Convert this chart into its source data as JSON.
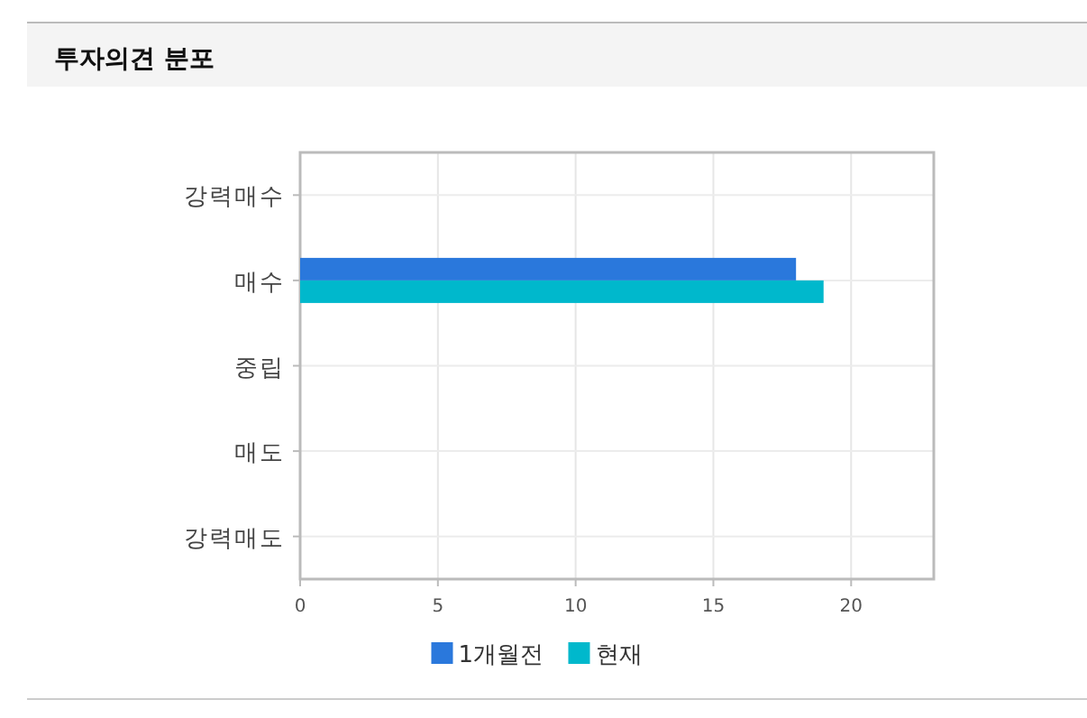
{
  "chart_data": {
    "type": "bar",
    "orientation": "horizontal",
    "title": "투자의견 분포",
    "categories": [
      "강력매수",
      "매수",
      "중립",
      "매도",
      "강력매도"
    ],
    "series": [
      {
        "name": "1개월전",
        "color": "#2a78dc",
        "values": [
          0,
          18,
          0,
          0,
          0
        ]
      },
      {
        "name": "현재",
        "color": "#00b8cc",
        "values": [
          0,
          19,
          0,
          0,
          0
        ]
      }
    ],
    "xlim": [
      0,
      23
    ],
    "xticks": [
      0,
      5,
      10,
      15,
      20
    ],
    "grid": true,
    "legend": "bottom"
  }
}
